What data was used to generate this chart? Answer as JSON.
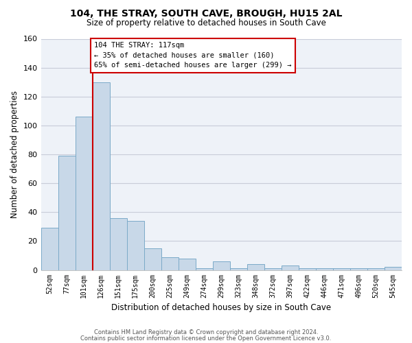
{
  "title": "104, THE STRAY, SOUTH CAVE, BROUGH, HU15 2AL",
  "subtitle": "Size of property relative to detached houses in South Cave",
  "xlabel": "Distribution of detached houses by size in South Cave",
  "ylabel": "Number of detached properties",
  "bar_color": "#c8d8e8",
  "bar_edge_color": "#7baac8",
  "categories": [
    "52sqm",
    "77sqm",
    "101sqm",
    "126sqm",
    "151sqm",
    "175sqm",
    "200sqm",
    "225sqm",
    "249sqm",
    "274sqm",
    "299sqm",
    "323sqm",
    "348sqm",
    "372sqm",
    "397sqm",
    "422sqm",
    "446sqm",
    "471sqm",
    "496sqm",
    "520sqm",
    "545sqm"
  ],
  "values": [
    29,
    79,
    106,
    130,
    36,
    34,
    15,
    9,
    8,
    1,
    6,
    1,
    4,
    1,
    3,
    1,
    1,
    1,
    1,
    1,
    2
  ],
  "ylim": [
    0,
    160
  ],
  "yticks": [
    0,
    20,
    40,
    60,
    80,
    100,
    120,
    140,
    160
  ],
  "annotation_text": "104 THE STRAY: 117sqm\n← 35% of detached houses are smaller (160)\n65% of semi-detached houses are larger (299) →",
  "footer1": "Contains HM Land Registry data © Crown copyright and database right 2024.",
  "footer2": "Contains public sector information licensed under the Open Government Licence v3.0.",
  "bg_color": "#ffffff",
  "plot_bg_color": "#eef2f8",
  "grid_color": "#c8ccd8",
  "annotation_box_color": "#ffffff",
  "annotation_box_edge": "#cc0000",
  "property_line_color": "#cc0000"
}
